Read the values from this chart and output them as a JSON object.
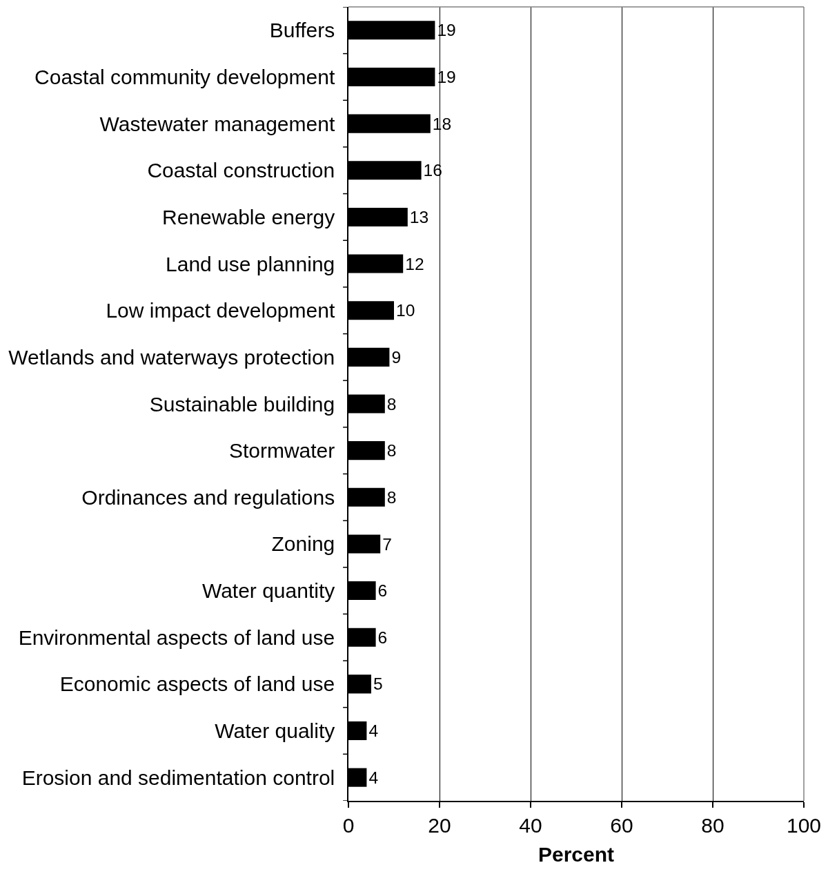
{
  "chart_data": {
    "type": "bar",
    "orientation": "horizontal",
    "categories": [
      "Buffers",
      "Coastal community development",
      "Wastewater management",
      "Coastal construction",
      "Renewable energy",
      "Land use planning",
      "Low impact development",
      "Wetlands and waterways protection",
      "Sustainable building",
      "Stormwater",
      "Ordinances and regulations",
      "Zoning",
      "Water quantity",
      "Environmental aspects of land use",
      "Economic aspects of land use",
      "Water quality",
      "Erosion and sedimentation control"
    ],
    "values": [
      19,
      19,
      18,
      16,
      13,
      12,
      10,
      9,
      8,
      8,
      8,
      7,
      6,
      6,
      5,
      4,
      4
    ],
    "color": "#000000",
    "xlabel": "Percent",
    "xlim": [
      0,
      100
    ],
    "xticks": [
      0,
      20,
      40,
      60,
      80,
      100
    ],
    "grid": "x",
    "data_labels": true
  }
}
